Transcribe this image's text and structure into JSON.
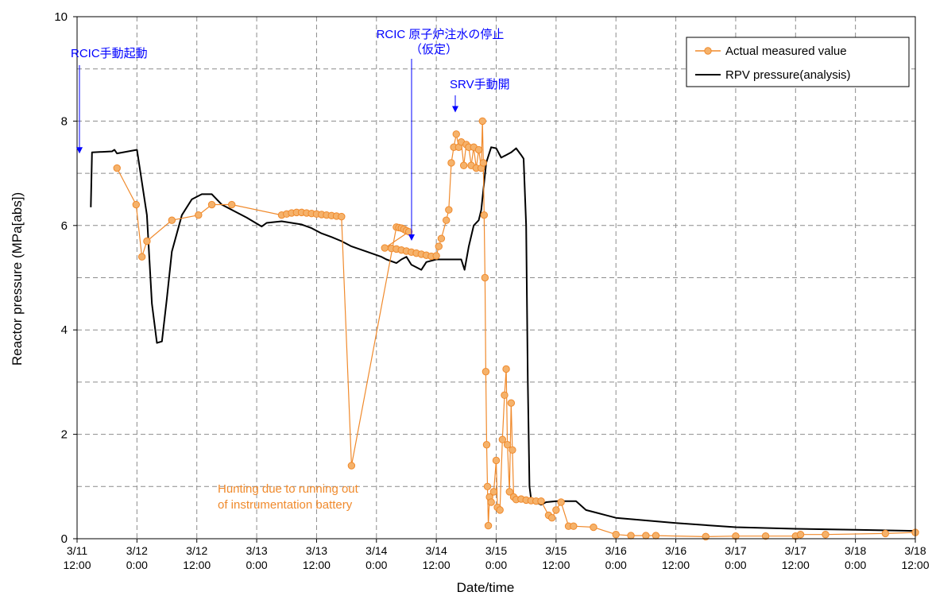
{
  "chart_data": {
    "type": "line",
    "title": "",
    "xlabel": "Date/time",
    "ylabel": "Reactor pressure (MPa[abs])",
    "ylim": [
      0,
      10
    ],
    "yticks": [
      0,
      2,
      4,
      6,
      8,
      10
    ],
    "xlim": [
      "3/11 12:00",
      "3/18 12:00"
    ],
    "xtick_labels": [
      [
        "3/11",
        "12:00"
      ],
      [
        "3/12",
        "0:00"
      ],
      [
        "3/12",
        "12:00"
      ],
      [
        "3/13",
        "0:00"
      ],
      [
        "3/13",
        "12:00"
      ],
      [
        "3/14",
        "0:00"
      ],
      [
        "3/14",
        "12:00"
      ],
      [
        "3/15",
        "0:00"
      ],
      [
        "3/15",
        "12:00"
      ],
      [
        "3/16",
        "0:00"
      ],
      [
        "3/16",
        "12:00"
      ],
      [
        "3/17",
        "0:00"
      ],
      [
        "3/17",
        "12:00"
      ],
      [
        "3/18",
        "0:00"
      ],
      [
        "3/18",
        "12:00"
      ]
    ],
    "grid": true,
    "legend_position": "top-right",
    "colors": {
      "measured": "#f08a2c",
      "marker_fill": "#f5b26b",
      "analysis": "#000000",
      "annotation_blue": "#0000ff",
      "annotation_orange": "#f08a2c",
      "grid": "#8c8c8c"
    },
    "series": [
      {
        "name": "Actual measured value",
        "style": "line-with-circle-markers",
        "points": [
          [
            "3/11 20:00",
            7.1
          ],
          [
            "3/11 23:50",
            6.4
          ],
          [
            "3/12 1:00",
            5.4
          ],
          [
            "3/12 2:00",
            5.7
          ],
          [
            "3/12 7:00",
            6.1
          ],
          [
            "3/12 12:20",
            6.2
          ],
          [
            "3/12 15:00",
            6.4
          ],
          [
            "3/12 19:00",
            6.4
          ],
          [
            "3/13 5:00",
            6.2
          ],
          [
            "3/13 6:00",
            6.22
          ],
          [
            "3/13 7:00",
            6.24
          ],
          [
            "3/13 8:00",
            6.25
          ],
          [
            "3/13 9:00",
            6.25
          ],
          [
            "3/13 10:00",
            6.24
          ],
          [
            "3/13 11:00",
            6.23
          ],
          [
            "3/13 12:00",
            6.22
          ],
          [
            "3/13 13:00",
            6.21
          ],
          [
            "3/13 14:00",
            6.2
          ],
          [
            "3/13 15:00",
            6.19
          ],
          [
            "3/13 16:00",
            6.18
          ],
          [
            "3/13 17:00",
            6.17
          ],
          [
            "3/13 19:00",
            1.4
          ],
          [
            "3/14 4:00",
            5.97
          ],
          [
            "3/14 4:30",
            5.96
          ],
          [
            "3/14 5:00",
            5.95
          ],
          [
            "3/14 5:30",
            5.93
          ],
          [
            "3/14 6:00",
            5.9
          ],
          [
            "3/14 6:30",
            5.88
          ],
          [
            "3/14 1:40",
            5.57
          ],
          [
            "3/14 3:00",
            5.56
          ],
          [
            "3/14 4:00",
            5.55
          ],
          [
            "3/14 5:00",
            5.53
          ],
          [
            "3/14 6:00",
            5.51
          ],
          [
            "3/14 7:00",
            5.49
          ],
          [
            "3/14 8:00",
            5.47
          ],
          [
            "3/14 9:00",
            5.45
          ],
          [
            "3/14 10:00",
            5.43
          ],
          [
            "3/14 11:00",
            5.41
          ],
          [
            "3/14 12:00",
            5.42
          ],
          [
            "3/14 12:30",
            5.6
          ],
          [
            "3/14 13:00",
            5.75
          ],
          [
            "3/14 14:00",
            6.1
          ],
          [
            "3/14 14:30",
            6.3
          ],
          [
            "3/14 15:00",
            7.2
          ],
          [
            "3/14 15:30",
            7.5
          ],
          [
            "3/14 16:00",
            7.75
          ],
          [
            "3/14 16:30",
            7.5
          ],
          [
            "3/14 17:00",
            7.6
          ],
          [
            "3/14 17:30",
            7.15
          ],
          [
            "3/14 18:00",
            7.55
          ],
          [
            "3/14 18:30",
            7.5
          ],
          [
            "3/14 19:00",
            7.15
          ],
          [
            "3/14 19:30",
            7.5
          ],
          [
            "3/14 20:00",
            7.1
          ],
          [
            "3/14 20:30",
            7.45
          ],
          [
            "3/14 21:00",
            7.1
          ],
          [
            "3/14 21:15",
            8.0
          ],
          [
            "3/14 21:25",
            7.2
          ],
          [
            "3/14 21:35",
            6.2
          ],
          [
            "3/14 21:45",
            5.0
          ],
          [
            "3/14 21:55",
            3.2
          ],
          [
            "3/14 22:05",
            1.8
          ],
          [
            "3/14 22:15",
            1.0
          ],
          [
            "3/14 22:25",
            0.25
          ],
          [
            "3/14 22:40",
            0.8
          ],
          [
            "3/14 23:00",
            0.7
          ],
          [
            "3/14 23:30",
            0.9
          ],
          [
            "3/15 0:00",
            1.5
          ],
          [
            "3/15 0:15",
            0.6
          ],
          [
            "3/15 0:45",
            0.55
          ],
          [
            "3/15 1:15",
            1.9
          ],
          [
            "3/15 1:40",
            2.75
          ],
          [
            "3/15 2:00",
            3.25
          ],
          [
            "3/15 2:15",
            1.8
          ],
          [
            "3/15 2:40",
            0.9
          ],
          [
            "3/15 3:00",
            2.6
          ],
          [
            "3/15 3:15",
            1.7
          ],
          [
            "3/15 3:30",
            0.8
          ],
          [
            "3/15 4:00",
            0.75
          ],
          [
            "3/15 5:00",
            0.76
          ],
          [
            "3/15 6:00",
            0.74
          ],
          [
            "3/15 7:00",
            0.73
          ],
          [
            "3/15 8:00",
            0.72
          ],
          [
            "3/15 9:00",
            0.72
          ],
          [
            "3/15 10:30",
            0.45
          ],
          [
            "3/15 11:10",
            0.4
          ],
          [
            "3/15 12:00",
            0.55
          ],
          [
            "3/15 13:00",
            0.7
          ],
          [
            "3/15 14:30",
            0.24
          ],
          [
            "3/15 15:30",
            0.24
          ],
          [
            "3/15 19:30",
            0.22
          ],
          [
            "3/16 0:00",
            0.08
          ],
          [
            "3/16 3:00",
            0.06
          ],
          [
            "3/16 6:00",
            0.06
          ],
          [
            "3/16 8:00",
            0.06
          ],
          [
            "3/16 18:00",
            0.04
          ],
          [
            "3/17 0:00",
            0.05
          ],
          [
            "3/17 6:00",
            0.05
          ],
          [
            "3/17 12:00",
            0.05
          ],
          [
            "3/17 13:00",
            0.08
          ],
          [
            "3/17 18:00",
            0.08
          ],
          [
            "3/18 6:00",
            0.1
          ],
          [
            "3/18 12:00",
            0.12
          ]
        ]
      },
      {
        "name": "RPV pressure(analysis)",
        "style": "line",
        "points": [
          [
            "3/11 14:45",
            6.35
          ],
          [
            "3/11 15:00",
            7.4
          ],
          [
            "3/11 19:00",
            7.42
          ],
          [
            "3/11 19:30",
            7.45
          ],
          [
            "3/11 20:00",
            7.38
          ],
          [
            "3/12 0:00",
            7.45
          ],
          [
            "3/12 2:00",
            6.2
          ],
          [
            "3/12 3:00",
            4.5
          ],
          [
            "3/12 4:00",
            3.75
          ],
          [
            "3/12 5:00",
            3.78
          ],
          [
            "3/12 6:00",
            4.6
          ],
          [
            "3/12 7:00",
            5.5
          ],
          [
            "3/12 9:00",
            6.2
          ],
          [
            "3/12 11:00",
            6.5
          ],
          [
            "3/12 13:00",
            6.6
          ],
          [
            "3/12 15:00",
            6.6
          ],
          [
            "3/12 17:00",
            6.4
          ],
          [
            "3/12 20:00",
            6.25
          ],
          [
            "3/12 22:00",
            6.15
          ],
          [
            "3/13 1:00",
            5.98
          ],
          [
            "3/13 2:00",
            6.05
          ],
          [
            "3/13 5:00",
            6.08
          ],
          [
            "3/13 9:00",
            6.02
          ],
          [
            "3/13 11:00",
            5.95
          ],
          [
            "3/13 13:00",
            5.85
          ],
          [
            "3/13 15:00",
            5.78
          ],
          [
            "3/13 17:00",
            5.7
          ],
          [
            "3/13 19:00",
            5.6
          ],
          [
            "3/13 22:00",
            5.5
          ],
          [
            "3/14 1:00",
            5.4
          ],
          [
            "3/14 2:00",
            5.35
          ],
          [
            "3/14 4:00",
            5.28
          ],
          [
            "3/14 5:00",
            5.35
          ],
          [
            "3/14 6:00",
            5.4
          ],
          [
            "3/14 7:00",
            5.25
          ],
          [
            "3/14 8:00",
            5.2
          ],
          [
            "3/14 9:00",
            5.15
          ],
          [
            "3/14 10:00",
            5.3
          ],
          [
            "3/14 12:00",
            5.35
          ],
          [
            "3/14 14:00",
            5.35
          ],
          [
            "3/14 16:00",
            5.35
          ],
          [
            "3/14 17:00",
            5.35
          ],
          [
            "3/14 17:40",
            5.15
          ],
          [
            "3/14 18:30",
            5.6
          ],
          [
            "3/14 19:30",
            6.0
          ],
          [
            "3/14 20:30",
            6.1
          ],
          [
            "3/14 21:00",
            6.3
          ],
          [
            "3/14 22:00",
            7.2
          ],
          [
            "3/14 23:00",
            7.5
          ],
          [
            "3/15 0:00",
            7.48
          ],
          [
            "3/15 1:00",
            7.3
          ],
          [
            "3/15 2:00",
            7.35
          ],
          [
            "3/15 3:00",
            7.4
          ],
          [
            "3/15 4:00",
            7.48
          ],
          [
            "3/15 5:00",
            7.35
          ],
          [
            "3/15 5:30",
            7.28
          ],
          [
            "3/15 6:00",
            6.0
          ],
          [
            "3/15 6:20",
            3.0
          ],
          [
            "3/15 6:40",
            1.0
          ],
          [
            "3/15 7:00",
            0.75
          ],
          [
            "3/15 9:00",
            0.65
          ],
          [
            "3/15 10:00",
            0.7
          ],
          [
            "3/15 12:00",
            0.72
          ],
          [
            "3/15 14:00",
            0.72
          ],
          [
            "3/15 16:00",
            0.72
          ],
          [
            "3/15 18:00",
            0.55
          ],
          [
            "3/15 20:00",
            0.5
          ],
          [
            "3/16 0:00",
            0.4
          ],
          [
            "3/16 12:00",
            0.3
          ],
          [
            "3/17 0:00",
            0.22
          ],
          [
            "3/17 12:00",
            0.19
          ],
          [
            "3/18 0:00",
            0.17
          ],
          [
            "3/18 12:00",
            0.15
          ]
        ]
      }
    ],
    "annotations": [
      {
        "lines": [
          "RCIC手動起動"
        ],
        "color": "blue",
        "anchor": "3/11 15:00",
        "arrow_to_value": 7.5
      },
      {
        "lines": [
          "RCIC 原子炉注水の停止",
          "（仮定）"
        ],
        "color": "blue",
        "anchor": "3/14 13:20",
        "arrow_to_value": 5.8
      },
      {
        "lines": [
          "SRV手動開"
        ],
        "color": "blue",
        "anchor": "3/14 18:00",
        "arrow_to_value": 8.15
      },
      {
        "lines": [
          "Hunting due to running out",
          "of instrumentation battery"
        ],
        "color": "orange"
      }
    ]
  }
}
